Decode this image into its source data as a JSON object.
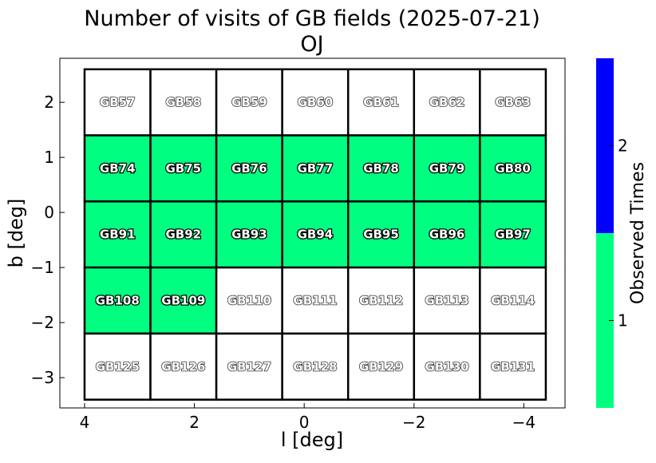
{
  "chart_data": {
    "type": "heatmap",
    "title": "Number of visits of GB fields (2025-07-21)",
    "subtitle": "OJ",
    "xlabel": "l [deg]",
    "ylabel": "b [deg]",
    "xlim": [
      4.45,
      -4.75
    ],
    "ylim": [
      -3.55,
      2.8
    ],
    "x_inverted": true,
    "xticks": [
      4,
      2,
      0,
      -2,
      -4
    ],
    "xtick_labels": [
      "4",
      "2",
      "0",
      "−2",
      "−4"
    ],
    "yticks": [
      2,
      1,
      0,
      -1,
      -2,
      -3
    ],
    "ytick_labels": [
      "2",
      "1",
      "0",
      "−1",
      "−2",
      "−3"
    ],
    "colorbar": {
      "label": "Observed Times",
      "range": [
        0.5,
        2.5
      ],
      "ticks": [
        1,
        2
      ],
      "tick_labels": [
        "1",
        "2"
      ],
      "levels": [
        {
          "value": 1,
          "color": "#00ff80"
        },
        {
          "value": 2,
          "color": "#0000ff"
        }
      ]
    },
    "unobserved_color": "#ffffff",
    "grid": false,
    "col_centers": [
      3.4,
      2.2,
      1.0,
      -0.2,
      -1.4,
      -2.6,
      -3.8
    ],
    "row_centers": [
      2.0,
      0.8,
      -0.4,
      -1.6,
      -2.8
    ],
    "row_yaxis_centers": [
      2.0,
      0.8,
      -0.4,
      -1.6,
      -2.8
    ],
    "fields": [
      {
        "name": "GB57",
        "row": 0,
        "col": 0,
        "count": 0
      },
      {
        "name": "GB58",
        "row": 0,
        "col": 1,
        "count": 0
      },
      {
        "name": "GB59",
        "row": 0,
        "col": 2,
        "count": 0
      },
      {
        "name": "GB60",
        "row": 0,
        "col": 3,
        "count": 0
      },
      {
        "name": "GB61",
        "row": 0,
        "col": 4,
        "count": 0
      },
      {
        "name": "GB62",
        "row": 0,
        "col": 5,
        "count": 0
      },
      {
        "name": "GB63",
        "row": 0,
        "col": 6,
        "count": 0
      },
      {
        "name": "GB74",
        "row": 1,
        "col": 0,
        "count": 1
      },
      {
        "name": "GB75",
        "row": 1,
        "col": 1,
        "count": 1
      },
      {
        "name": "GB76",
        "row": 1,
        "col": 2,
        "count": 1
      },
      {
        "name": "GB77",
        "row": 1,
        "col": 3,
        "count": 1
      },
      {
        "name": "GB78",
        "row": 1,
        "col": 4,
        "count": 1
      },
      {
        "name": "GB79",
        "row": 1,
        "col": 5,
        "count": 1
      },
      {
        "name": "GB80",
        "row": 1,
        "col": 6,
        "count": 1
      },
      {
        "name": "GB91",
        "row": 2,
        "col": 0,
        "count": 1
      },
      {
        "name": "GB92",
        "row": 2,
        "col": 1,
        "count": 1
      },
      {
        "name": "GB93",
        "row": 2,
        "col": 2,
        "count": 1
      },
      {
        "name": "GB94",
        "row": 2,
        "col": 3,
        "count": 1
      },
      {
        "name": "GB95",
        "row": 2,
        "col": 4,
        "count": 1
      },
      {
        "name": "GB96",
        "row": 2,
        "col": 5,
        "count": 1
      },
      {
        "name": "GB97",
        "row": 2,
        "col": 6,
        "count": 1
      },
      {
        "name": "GB108",
        "row": 3,
        "col": 0,
        "count": 1
      },
      {
        "name": "GB109",
        "row": 3,
        "col": 1,
        "count": 1
      },
      {
        "name": "GB110",
        "row": 3,
        "col": 2,
        "count": 0
      },
      {
        "name": "GB111",
        "row": 3,
        "col": 3,
        "count": 0
      },
      {
        "name": "GB112",
        "row": 3,
        "col": 4,
        "count": 0
      },
      {
        "name": "GB113",
        "row": 3,
        "col": 5,
        "count": 0
      },
      {
        "name": "GB114",
        "row": 3,
        "col": 6,
        "count": 0
      },
      {
        "name": "GB125",
        "row": 4,
        "col": 0,
        "count": 0
      },
      {
        "name": "GB126",
        "row": 4,
        "col": 1,
        "count": 0
      },
      {
        "name": "GB127",
        "row": 4,
        "col": 2,
        "count": 0
      },
      {
        "name": "GB128",
        "row": 4,
        "col": 3,
        "count": 0
      },
      {
        "name": "GB129",
        "row": 4,
        "col": 4,
        "count": 0
      },
      {
        "name": "GB130",
        "row": 4,
        "col": 5,
        "count": 0
      },
      {
        "name": "GB131",
        "row": 4,
        "col": 6,
        "count": 0
      }
    ]
  }
}
